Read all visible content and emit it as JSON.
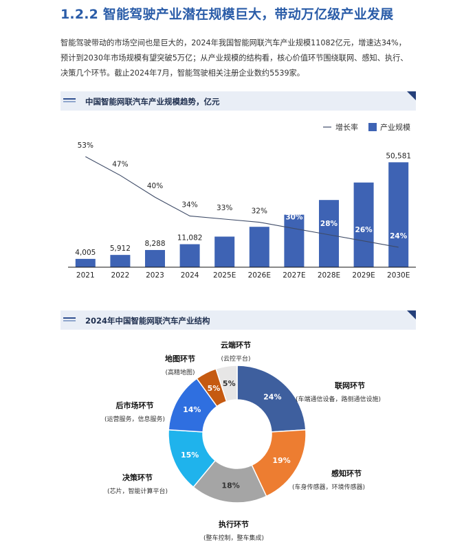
{
  "heading": "1.2.2 智能驾驶产业潜在规模巨大，带动万亿级产业发展",
  "paragraph": {
    "line1": "智能驾驶带动的市场空间也是巨大的，2024年我国智能网联汽车产业规模11082亿元，增速达34%，",
    "line2": "预计到2030年市场规模有望突破5万亿；从产业规模的结构看，核心价值环节围绕联网、感知、执行、",
    "line3": "决策几个环节。截止2024年7月，智能驾驶相关注册企业数约5539家。"
  },
  "section1": {
    "title": "中国智能网联汽车产业规模趋势，亿元"
  },
  "section2": {
    "title": "2024年中国智能网联汽车产业结构"
  },
  "colors": {
    "bar": "#3e63b4",
    "line": "#3d4a66",
    "donut": [
      "#3e5f9e",
      "#ed7d31",
      "#a5a5a5",
      "#1fb3ec",
      "#2f6fe0",
      "#c55a11",
      "#e7e6e6"
    ]
  },
  "chart_data": [
    {
      "type": "bar",
      "title": "中国智能网联汽车产业规模趋势，亿元",
      "categories": [
        "2021",
        "2022",
        "2023",
        "2024",
        "2025E",
        "2026E",
        "2027E",
        "2028E",
        "2029E",
        "2030E"
      ],
      "series": [
        {
          "name": "产业规模",
          "type": "bar",
          "values": [
            4005,
            5912,
            8288,
            11082,
            14750,
            19470,
            25310,
            32400,
            40830,
            50581
          ],
          "labels": [
            "4,005",
            "5,912",
            "8,288",
            "11,082",
            "",
            "",
            "",
            "",
            "",
            "50,581"
          ]
        },
        {
          "name": "增长率",
          "type": "line",
          "values": [
            53,
            47,
            40,
            34,
            33,
            32,
            30,
            28,
            26,
            24
          ],
          "labels": [
            "53%",
            "47%",
            "40%",
            "34%",
            "33%",
            "32%",
            "30%",
            "28%",
            "26%",
            "24%"
          ]
        }
      ],
      "ylim": [
        0,
        52000
      ],
      "legend_position": "top-right",
      "grid": false
    },
    {
      "type": "pie",
      "title": "2024年中国智能网联汽车产业结构",
      "slices": [
        {
          "name": "联网环节",
          "sub": "(车端通信设备，路侧通信设施)",
          "value": 24,
          "label": "24%"
        },
        {
          "name": "感知环节",
          "sub": "(车身传感器，环境传感器)",
          "value": 19,
          "label": "19%"
        },
        {
          "name": "执行环节",
          "sub": "(整车控制，整车集成)",
          "value": 18,
          "label": "18%"
        },
        {
          "name": "决策环节",
          "sub": "(芯片，智能计算平台)",
          "value": 15,
          "label": "15%"
        },
        {
          "name": "后市场环节",
          "sub": "(运营服务，信息服务)",
          "value": 14,
          "label": "14%"
        },
        {
          "name": "地图环节",
          "sub": "(高精地图)",
          "value": 5,
          "label": "5%"
        },
        {
          "name": "云端环节",
          "sub": "(云控平台)",
          "value": 5,
          "label": "5%"
        }
      ],
      "donut": true
    }
  ]
}
